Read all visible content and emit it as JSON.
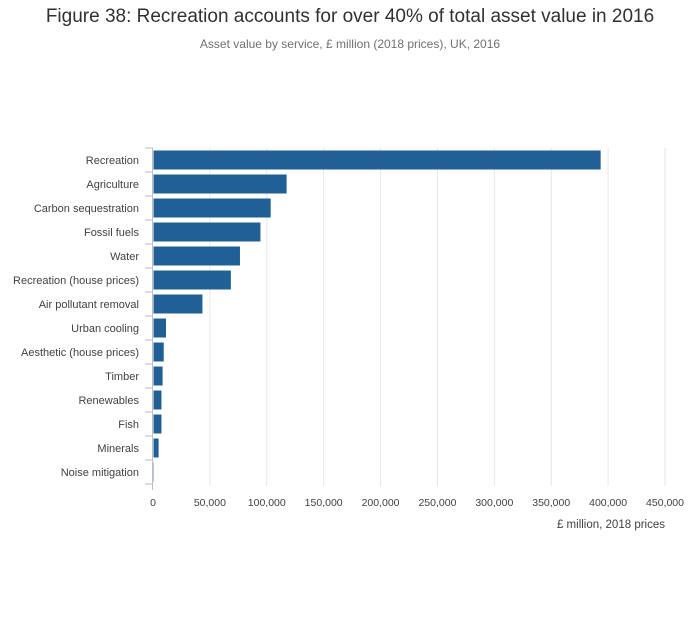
{
  "header": {
    "title": "Figure 38: Recreation accounts for over 40% of total asset value in 2016",
    "subtitle": "Asset value by service, £ million (2018 prices), UK, 2016"
  },
  "colors": {
    "bar": "#206095",
    "grid": "#e6e6e6",
    "axis": "#bebebe"
  },
  "chart_data": {
    "type": "bar",
    "orientation": "horizontal",
    "title": "Figure 38: Recreation accounts for over 40% of total asset value in 2016",
    "subtitle": "Asset value by service, £ million (2018 prices), UK, 2016",
    "xlabel": "£ million, 2018 prices",
    "ylabel": "",
    "categories": [
      "Recreation",
      "Agriculture",
      "Carbon sequestration",
      "Fossil fuels",
      "Water",
      "Recreation (house prices)",
      "Air pollutant removal",
      "Urban cooling",
      "Aesthetic (house prices)",
      "Timber",
      "Renewables",
      "Fish",
      "Minerals",
      "Noise mitigation"
    ],
    "values": [
      393000,
      117000,
      103000,
      94000,
      76000,
      68000,
      43000,
      11000,
      9000,
      8000,
      7000,
      7000,
      4500,
      300
    ],
    "xlim": [
      0,
      450000
    ],
    "xticks": [
      0,
      50000,
      100000,
      150000,
      200000,
      250000,
      300000,
      350000,
      400000,
      450000
    ],
    "xtick_labels": [
      "0",
      "50,000",
      "100,000",
      "150,000",
      "200,000",
      "250,000",
      "300,000",
      "350,000",
      "400,000",
      "450,000"
    ],
    "grid": true,
    "legend": "none"
  }
}
